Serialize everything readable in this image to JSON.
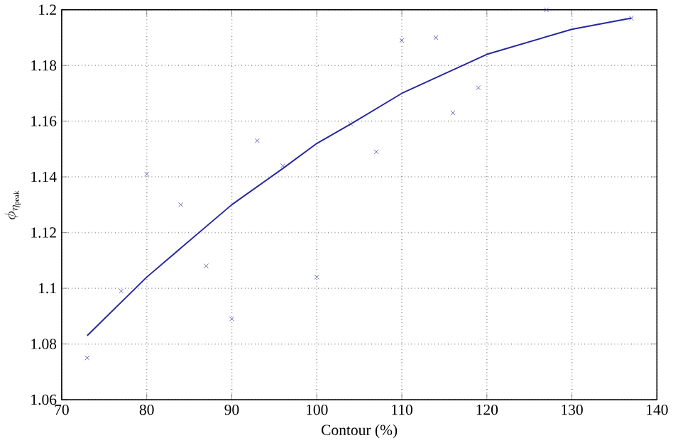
{
  "chart_data": {
    "type": "scatter",
    "xlabel": "Contour (%)",
    "ylabel": "\\phi_{\\eta_{\\mathrm{peak}}}",
    "xlim": [
      70,
      140
    ],
    "ylim": [
      1.06,
      1.2
    ],
    "xticks": [
      70,
      80,
      90,
      100,
      110,
      120,
      130,
      140
    ],
    "yticks": [
      1.06,
      1.08,
      1.1,
      1.12,
      1.14,
      1.16,
      1.18,
      1.2
    ],
    "grid": true,
    "series": [
      {
        "marker": "cross",
        "color": "#3c3cb4",
        "x": [
          73,
          77,
          80,
          84,
          87,
          90,
          93,
          96,
          100,
          104,
          107,
          110,
          114,
          116,
          119,
          127,
          137
        ],
        "values": [
          1.075,
          1.099,
          1.141,
          1.13,
          1.108,
          1.089,
          1.153,
          1.144,
          1.104,
          1.159,
          1.149,
          1.189,
          1.19,
          1.163,
          1.172,
          1.2,
          1.197
        ]
      },
      {
        "type": "line",
        "marker": "none",
        "line_style": "solid",
        "color": "#2626a0",
        "x": [
          73,
          80,
          90,
          96,
          100,
          104,
          110,
          120,
          130,
          137
        ],
        "values": [
          1.083,
          1.104,
          1.13,
          1.143,
          1.152,
          1.159,
          1.17,
          1.184,
          1.193,
          1.197
        ]
      }
    ]
  }
}
